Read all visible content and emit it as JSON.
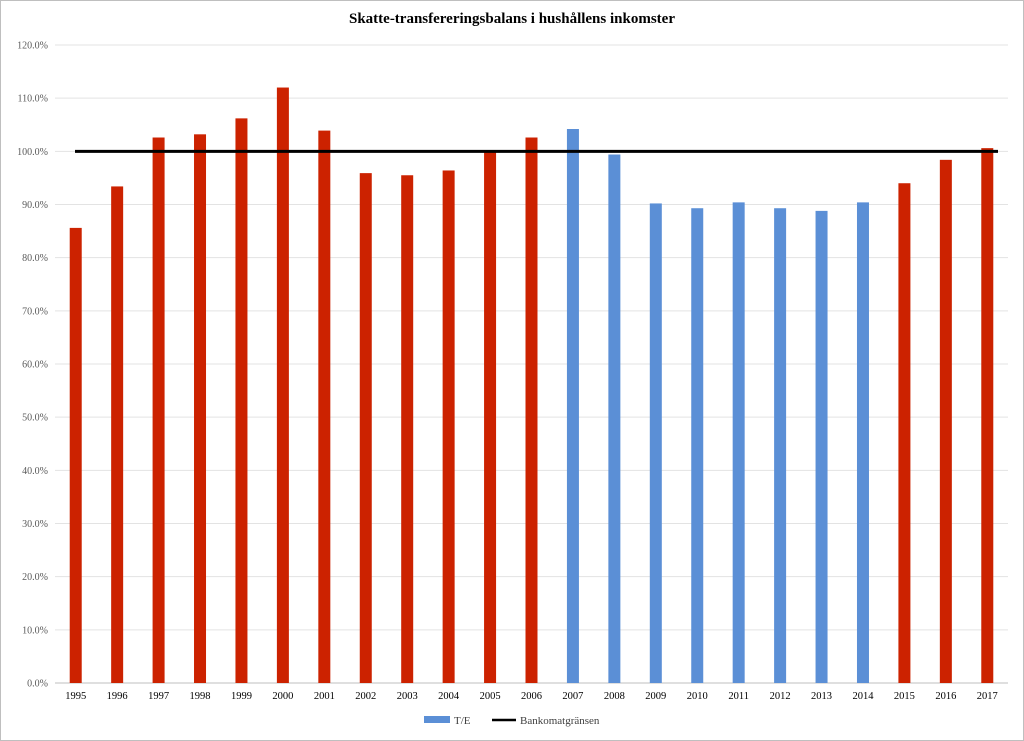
{
  "chart_data": {
    "type": "bar",
    "title": "Skatte-transfereringsbalans i hushållens inkomster",
    "categories": [
      "1995",
      "1996",
      "1997",
      "1998",
      "1999",
      "2000",
      "2001",
      "2002",
      "2003",
      "2004",
      "2005",
      "2006",
      "2007",
      "2008",
      "2009",
      "2010",
      "2011",
      "2012",
      "2013",
      "2014",
      "2015",
      "2016",
      "2017"
    ],
    "values": [
      85.6,
      93.4,
      102.6,
      103.2,
      106.2,
      112.0,
      103.9,
      95.9,
      95.5,
      96.4,
      100.0,
      102.6,
      104.2,
      99.4,
      90.2,
      89.3,
      90.4,
      89.3,
      88.8,
      90.4,
      94.0,
      98.4,
      100.6
    ],
    "bar_colors": [
      "#cc2200",
      "#cc2200",
      "#cc2200",
      "#cc2200",
      "#cc2200",
      "#cc2200",
      "#cc2200",
      "#cc2200",
      "#cc2200",
      "#cc2200",
      "#cc2200",
      "#cc2200",
      "#5b8fd6",
      "#5b8fd6",
      "#5b8fd6",
      "#5b8fd6",
      "#5b8fd6",
      "#5b8fd6",
      "#5b8fd6",
      "#5b8fd6",
      "#cc2200",
      "#cc2200",
      "#cc2200"
    ],
    "y_ticks": [
      "0.0%",
      "10.0%",
      "20.0%",
      "30.0%",
      "40.0%",
      "50.0%",
      "60.0%",
      "70.0%",
      "80.0%",
      "90.0%",
      "100.0%",
      "110.0%",
      "120.0%"
    ],
    "ylim": [
      0,
      120
    ],
    "reference_line": {
      "name": "Bankomatgränsen",
      "value": 100,
      "color": "#000000"
    },
    "legend": {
      "placement": "bottom",
      "entries": [
        {
          "name": "T/E",
          "color": "#5b8fd6",
          "kind": "bar"
        },
        {
          "name": "Bankomatgränsen",
          "color": "#000000",
          "kind": "line"
        }
      ]
    },
    "grid": true
  }
}
